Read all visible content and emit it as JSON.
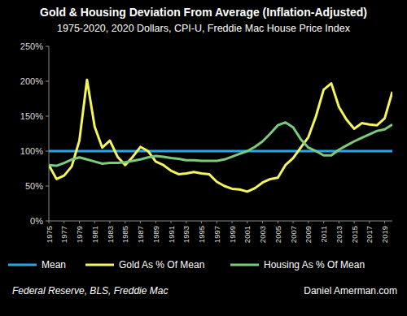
{
  "chart_data": {
    "type": "line",
    "title": "Gold & Housing Deviation From Average (Inflation-Adjusted)",
    "subtitle": "1975-2020, 2020 Dollars, CPI-U, Freddie Mac House Price Index",
    "annotations": [
      "Federal Reserve, BLS, Freddie Mac",
      "Daniel Amerman.com"
    ],
    "x": [
      1975,
      1976,
      1977,
      1978,
      1979,
      1980,
      1981,
      1982,
      1983,
      1984,
      1985,
      1986,
      1987,
      1988,
      1989,
      1990,
      1991,
      1992,
      1993,
      1994,
      1995,
      1996,
      1997,
      1998,
      1999,
      2000,
      2001,
      2002,
      2003,
      2004,
      2005,
      2006,
      2007,
      2008,
      2009,
      2010,
      2011,
      2012,
      2013,
      2014,
      2015,
      2016,
      2017,
      2018,
      2019,
      2020
    ],
    "series": [
      {
        "name": "Mean",
        "color": "#2aa6e6",
        "values": [
          100,
          100,
          100,
          100,
          100,
          100,
          100,
          100,
          100,
          100,
          100,
          100,
          100,
          100,
          100,
          100,
          100,
          100,
          100,
          100,
          100,
          100,
          100,
          100,
          100,
          100,
          100,
          100,
          100,
          100,
          100,
          100,
          100,
          100,
          100,
          100,
          100,
          100,
          100,
          100,
          100,
          100,
          100,
          100,
          100,
          100
        ]
      },
      {
        "name": "Gold As % Of Mean",
        "color": "#f4f45c",
        "values": [
          80,
          60,
          65,
          78,
          115,
          202,
          135,
          105,
          115,
          92,
          80,
          92,
          106,
          100,
          85,
          80,
          72,
          67,
          68,
          70,
          68,
          67,
          56,
          50,
          46,
          45,
          42,
          47,
          55,
          60,
          62,
          80,
          90,
          105,
          120,
          150,
          188,
          197,
          163,
          145,
          132,
          140,
          138,
          137,
          147,
          185
        ]
      },
      {
        "name": "Housing As % Of Mean",
        "color": "#7ccb7a",
        "values": [
          80,
          79,
          83,
          88,
          91,
          88,
          85,
          82,
          83,
          83,
          84,
          86,
          88,
          91,
          93,
          92,
          90,
          89,
          87,
          87,
          86,
          86,
          86,
          88,
          92,
          96,
          100,
          106,
          114,
          125,
          137,
          141,
          134,
          117,
          105,
          100,
          94,
          94,
          102,
          108,
          114,
          119,
          124,
          129,
          131,
          138
        ]
      }
    ],
    "xlim": [
      1975,
      2020
    ],
    "xticks": [
      1975,
      1977,
      1979,
      1981,
      1983,
      1985,
      1987,
      1989,
      1991,
      1993,
      1995,
      1997,
      1999,
      2001,
      2003,
      2005,
      2007,
      2009,
      2011,
      2013,
      2015,
      2017,
      2019
    ],
    "ylim": [
      0,
      250
    ],
    "yticks": [
      {
        "value": 0,
        "label": "0%"
      },
      {
        "value": 50,
        "label": "50%"
      },
      {
        "value": 100,
        "label": "100%"
      },
      {
        "value": 150,
        "label": "150%"
      },
      {
        "value": 200,
        "label": "200%"
      },
      {
        "value": 250,
        "label": "250%"
      }
    ],
    "grid": false,
    "legend": "bottom"
  }
}
